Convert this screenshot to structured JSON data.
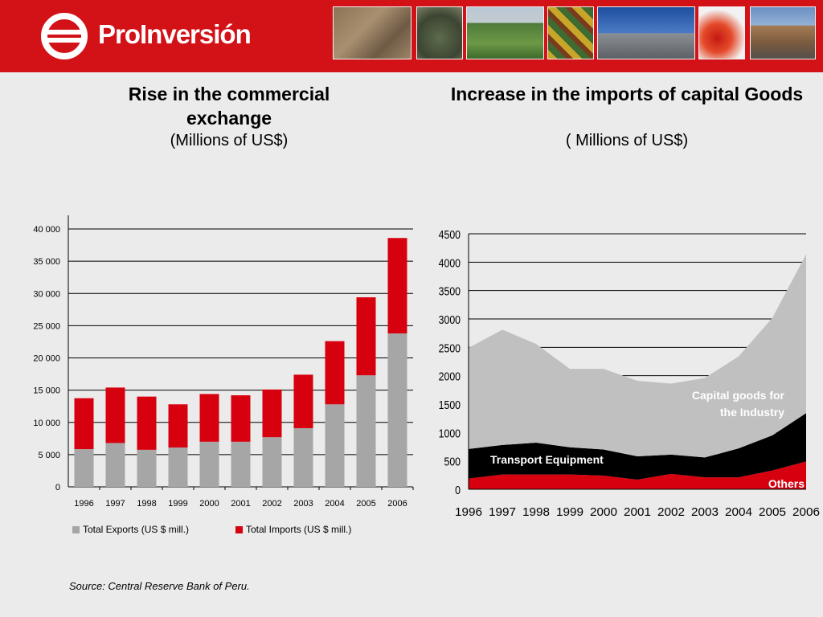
{
  "header": {
    "brand_name": "ProInversión",
    "colors": {
      "brand_red": "#d31218",
      "header_text": "#ffffff"
    },
    "logo_icon": "proinversion-emblem-icon",
    "photos": [
      "stone-wall-photo",
      "terraces-photo",
      "farm-fields-photo",
      "textile-pattern-photo",
      "airport-plane-photo",
      "red-peppers-photo",
      "highway-photo"
    ]
  },
  "left_chart": {
    "title": "Rise in the commercial exchange",
    "subtitle": "(Millions of US$)"
  },
  "right_chart": {
    "title": "Increase in the imports of capital Goods",
    "subtitle": "( Millions of US$)"
  },
  "source": "Source: Central Reserve Bank of Peru.",
  "chart_data": [
    {
      "type": "bar",
      "stacked": true,
      "title": "Rise in the commercial exchange",
      "subtitle": "(Millions of US$)",
      "categories": [
        "1996",
        "1997",
        "1998",
        "1999",
        "2000",
        "2001",
        "2002",
        "2003",
        "2004",
        "2005",
        "2006"
      ],
      "series": [
        {
          "name": "Total Exports (US $ mill.)",
          "color": "#a6a6a6",
          "values": [
            5850,
            6800,
            5750,
            6100,
            7000,
            7000,
            7700,
            9100,
            12800,
            17300,
            23800
          ]
        },
        {
          "name": "Total Imports (US $ mill.)",
          "color": "#d7000f",
          "values": [
            7900,
            8600,
            8250,
            6700,
            7400,
            7200,
            7400,
            8300,
            9800,
            12100,
            14800
          ]
        }
      ],
      "ylim": [
        0,
        40000
      ],
      "yticks": [
        0,
        5000,
        10000,
        15000,
        20000,
        25000,
        30000,
        35000,
        40000
      ],
      "ytick_labels": [
        "0",
        "5 000",
        "10 000",
        "15 000",
        "20 000",
        "25 000",
        "30 000",
        "35 000",
        "40 000"
      ],
      "grid": true,
      "legend": "bottom"
    },
    {
      "type": "area",
      "stacked": true,
      "title": "Increase in the imports of capital Goods",
      "subtitle": "( Millions of US$)",
      "x": [
        "1996",
        "1997",
        "1998",
        "1999",
        "2000",
        "2001",
        "2002",
        "2003",
        "2004",
        "2005",
        "2006"
      ],
      "series": [
        {
          "name": "Others",
          "color": "#d7000f",
          "values": [
            190,
            260,
            260,
            260,
            240,
            170,
            270,
            210,
            210,
            330,
            490
          ]
        },
        {
          "name": "Transport Equipment",
          "color": "#000000",
          "values": [
            520,
            520,
            560,
            480,
            460,
            410,
            340,
            350,
            510,
            620,
            850
          ]
        },
        {
          "name": "Capital goods for the Industry",
          "color": "#c0c0c0",
          "values": [
            1780,
            2030,
            1740,
            1380,
            1420,
            1330,
            1250,
            1400,
            1620,
            2070,
            2800
          ]
        }
      ],
      "ylim": [
        0,
        4500
      ],
      "yticks": [
        0,
        500,
        1000,
        1500,
        2000,
        2500,
        3000,
        3500,
        4000,
        4500
      ],
      "ytick_labels": [
        "0",
        "500",
        "1000",
        "1500",
        "2000",
        "2500",
        "3000",
        "3500",
        "4000",
        "4500"
      ],
      "series_labels": [
        "Capital goods for",
        "the Industry",
        "Transport Equipment",
        "Others"
      ],
      "grid": true
    }
  ]
}
